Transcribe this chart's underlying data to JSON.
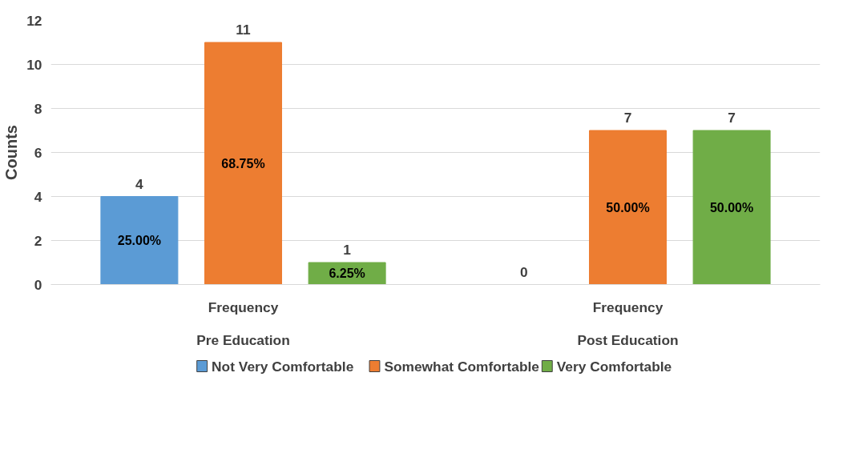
{
  "chart_data": {
    "type": "bar",
    "ylabel": "Counts",
    "categories": [
      "Pre Education",
      "Post Education"
    ],
    "annotations": [
      "Frequency",
      "Frequency",
      "25.00%",
      "68.75%",
      "6.25%",
      "50.00%",
      "50.00%"
    ],
    "series": [
      {
        "name": "Not Very Comfortable",
        "color": "#5b9bd5",
        "values": [
          4,
          0
        ]
      },
      {
        "name": "Somewhat Comfortable",
        "color": "#ed7d31",
        "values": [
          11,
          7
        ]
      },
      {
        "name": "Very Comfortable",
        "color": "#70ad47",
        "values": [
          1,
          7
        ]
      }
    ],
    "ylim": [
      0,
      12
    ],
    "yticks": [
      0,
      2,
      4,
      6,
      8,
      10,
      12
    ],
    "grid": "y",
    "legend": "bottom",
    "data_labels": true
  }
}
